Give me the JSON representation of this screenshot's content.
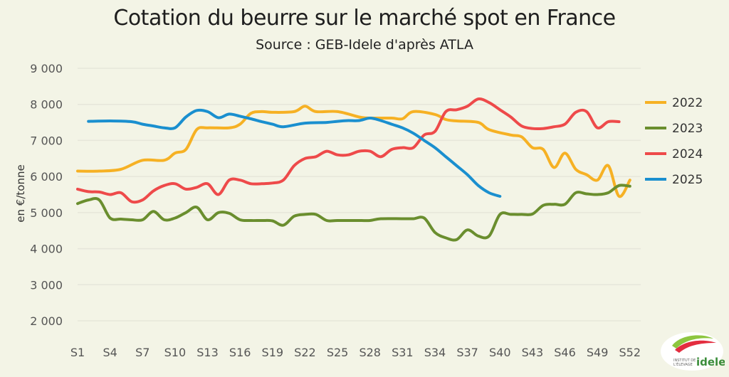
{
  "header": {
    "title": "Cotation du beurre sur le marché spot en France",
    "subtitle": "Source : GEB-Idele d'après ATLA"
  },
  "logo": {
    "line1": "INSTITUT DE",
    "line2": "L'ÉLEVAGE",
    "brand": "idele"
  },
  "chart_data": {
    "type": "line",
    "title": "Cotation du beurre sur le marché spot en France",
    "subtitle": "Source : GEB-Idele d'après ATLA",
    "xlabel": "",
    "ylabel": "en €/tonne",
    "ylim": [
      2000,
      9000
    ],
    "yticks": [
      2000,
      3000,
      4000,
      5000,
      6000,
      7000,
      8000,
      9000
    ],
    "ytick_labels": [
      "2 000",
      "3 000",
      "4 000",
      "5 000",
      "6 000",
      "7 000",
      "8 000",
      "9 000"
    ],
    "xlim": [
      1,
      53
    ],
    "xticks": [
      1,
      4,
      7,
      10,
      13,
      16,
      19,
      22,
      25,
      28,
      31,
      34,
      37,
      40,
      43,
      46,
      49,
      52
    ],
    "xtick_labels": [
      "S1",
      "S4",
      "S7",
      "S10",
      "S13",
      "S16",
      "S19",
      "S22",
      "S25",
      "S28",
      "S31",
      "S34",
      "S37",
      "S40",
      "S43",
      "S46",
      "S49",
      "S52"
    ],
    "grid": true,
    "legend": "right",
    "series": [
      {
        "name": "2022",
        "color": "#f6b124",
        "x": [
          1,
          3,
          5,
          7,
          9,
          10,
          11,
          12,
          13,
          15,
          16,
          17,
          18,
          19,
          21,
          22,
          23,
          25,
          27,
          28,
          30,
          31,
          32,
          34,
          35,
          36,
          38,
          39,
          41,
          42,
          43,
          44,
          45,
          46,
          47,
          48,
          49,
          50,
          51,
          52
        ],
        "y": [
          6150,
          6150,
          6200,
          6450,
          6450,
          6650,
          6750,
          7300,
          7350,
          7350,
          7450,
          7750,
          7800,
          7780,
          7800,
          7950,
          7800,
          7800,
          7650,
          7620,
          7620,
          7600,
          7800,
          7720,
          7580,
          7540,
          7500,
          7300,
          7150,
          7100,
          6800,
          6750,
          6250,
          6650,
          6200,
          6050,
          5900,
          6300,
          5450,
          5900
        ]
      },
      {
        "name": "2023",
        "color": "#6a8e2e",
        "x": [
          1,
          2,
          3,
          4,
          5,
          6,
          7,
          8,
          9,
          10,
          11,
          12,
          13,
          14,
          15,
          16,
          17,
          18,
          19,
          20,
          21,
          22,
          23,
          24,
          25,
          27,
          28,
          29,
          31,
          32,
          33,
          34,
          35,
          36,
          37,
          38,
          39,
          40,
          41,
          42,
          43,
          44,
          45,
          46,
          47,
          48,
          49,
          50,
          51,
          52
        ],
        "y": [
          5250,
          5350,
          5350,
          4850,
          4820,
          4800,
          4800,
          5030,
          4800,
          4850,
          5000,
          5150,
          4800,
          5000,
          4980,
          4800,
          4780,
          4780,
          4770,
          4650,
          4900,
          4950,
          4950,
          4780,
          4780,
          4780,
          4780,
          4830,
          4830,
          4830,
          4850,
          4450,
          4300,
          4250,
          4520,
          4350,
          4350,
          4950,
          4950,
          4950,
          4960,
          5200,
          5230,
          5230,
          5550,
          5520,
          5500,
          5550,
          5750,
          5730
        ]
      },
      {
        "name": "2024",
        "color": "#ee4a4a",
        "x": [
          1,
          2,
          3,
          4,
          5,
          6,
          7,
          8,
          9,
          10,
          11,
          12,
          13,
          14,
          15,
          16,
          17,
          18,
          19,
          20,
          21,
          22,
          23,
          24,
          25,
          26,
          27,
          28,
          29,
          30,
          31,
          32,
          33,
          34,
          35,
          36,
          37,
          38,
          39,
          40,
          41,
          42,
          43,
          44,
          45,
          46,
          47,
          48,
          49,
          50,
          51
        ],
        "y": [
          5650,
          5580,
          5570,
          5500,
          5550,
          5300,
          5350,
          5600,
          5750,
          5800,
          5650,
          5700,
          5800,
          5500,
          5900,
          5900,
          5800,
          5800,
          5820,
          5900,
          6300,
          6500,
          6550,
          6700,
          6600,
          6600,
          6700,
          6700,
          6550,
          6750,
          6800,
          6800,
          7150,
          7250,
          7800,
          7850,
          7950,
          8150,
          8050,
          7850,
          7650,
          7400,
          7330,
          7330,
          7380,
          7450,
          7780,
          7800,
          7350,
          7520,
          7520
        ]
      },
      {
        "name": "2025",
        "color": "#1a8fcf",
        "x": [
          2,
          4,
          6,
          7,
          8,
          9,
          10,
          11,
          12,
          13,
          14,
          15,
          16,
          17,
          18,
          19,
          20,
          22,
          24,
          25,
          26,
          27,
          28,
          29,
          30,
          31,
          32,
          33,
          34,
          35,
          36,
          37,
          38,
          39,
          40
        ],
        "y": [
          7530,
          7540,
          7520,
          7450,
          7400,
          7350,
          7350,
          7650,
          7830,
          7800,
          7630,
          7730,
          7670,
          7600,
          7520,
          7450,
          7380,
          7480,
          7500,
          7530,
          7550,
          7550,
          7620,
          7550,
          7450,
          7350,
          7200,
          7000,
          6800,
          6550,
          6300,
          6050,
          5750,
          5550,
          5450
        ]
      }
    ]
  }
}
